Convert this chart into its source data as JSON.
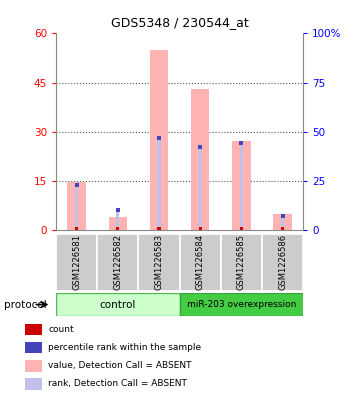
{
  "title": "GDS5348 / 230544_at",
  "samples": [
    "GSM1226581",
    "GSM1226582",
    "GSM1226583",
    "GSM1226584",
    "GSM1226585",
    "GSM1226586"
  ],
  "pink_bar_values": [
    14.5,
    4.0,
    55.0,
    43.0,
    27.0,
    5.0
  ],
  "blue_rank_values": [
    23.0,
    10.0,
    47.0,
    42.0,
    44.0,
    7.0
  ],
  "red_count_values": [
    0.8,
    0.8,
    0.8,
    0.8,
    0.8,
    0.8
  ],
  "left_ylim": [
    0,
    60
  ],
  "right_ylim": [
    0,
    100
  ],
  "left_yticks": [
    0,
    15,
    30,
    45,
    60
  ],
  "right_yticks": [
    0,
    25,
    50,
    75,
    100
  ],
  "right_yticklabels": [
    "0",
    "25",
    "50",
    "75",
    "100%"
  ],
  "control_label": "control",
  "overexpression_label": "miR-203 overexpression",
  "protocol_label": "protocol",
  "bar_color_pink": "#ffb3b3",
  "bar_color_blue_light": "#c0c0e8",
  "count_color": "#cc0000",
  "rank_dot_color": "#4444bb",
  "grid_color": "#888888",
  "control_bg": "#ccffcc",
  "overexp_bg": "#44cc44",
  "sample_bg": "#cccccc",
  "legend_labels": [
    "count",
    "percentile rank within the sample",
    "value, Detection Call = ABSENT",
    "rank, Detection Call = ABSENT"
  ],
  "legend_colors": [
    "#cc0000",
    "#4444bb",
    "#ffb3b3",
    "#c0c0e8"
  ]
}
